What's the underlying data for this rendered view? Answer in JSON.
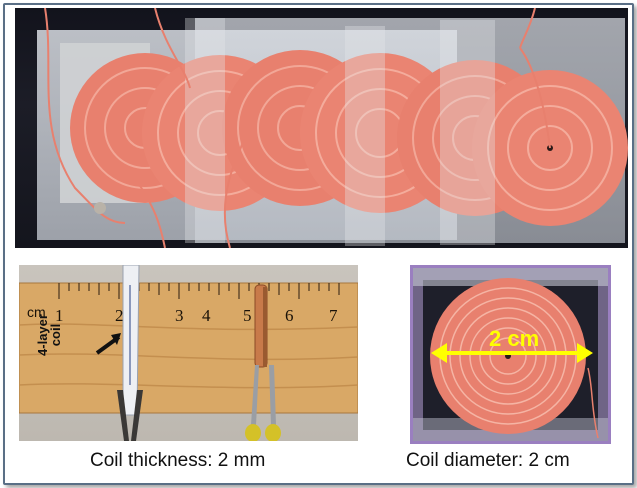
{
  "captions": {
    "thickness": "Coil thickness: 2 mm",
    "diameter": "Coil diameter: 2 cm"
  },
  "annotations": {
    "diameter_label": "2 cm",
    "layer_label_line1": "4-layer",
    "layer_label_line2": "coil"
  },
  "ruler": {
    "unit_label": "cm",
    "numbers": [
      "1",
      "2",
      "3",
      "4",
      "5",
      "6",
      "7"
    ]
  },
  "colors": {
    "frame_border": "#5a6f86",
    "coil_copper": "#e8806e",
    "arrow_yellow": "#ffff00",
    "ruler_wood": "#d9a866",
    "dia_photo_border": "#9a7fc0"
  }
}
